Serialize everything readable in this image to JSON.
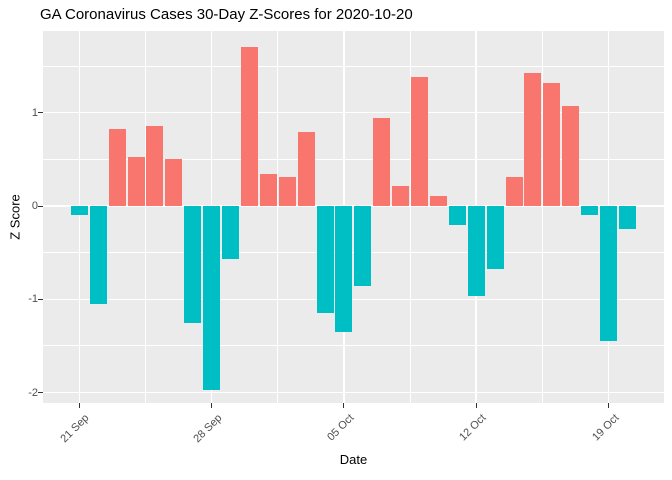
{
  "title": "GA Coronavirus Cases 30-Day Z-Scores for 2020-10-20",
  "chart_data": {
    "type": "bar",
    "title": "GA Coronavirus Cases 30-Day Z-Scores for 2020-10-20",
    "xlabel": "Date",
    "ylabel": "Z Score",
    "legend": "none",
    "grid": "on",
    "ylim": [
      -2.11,
      1.88
    ],
    "y_ticks": [
      {
        "label": "1",
        "value": 1
      },
      {
        "label": "0",
        "value": 0
      },
      {
        "label": "-1",
        "value": -1
      },
      {
        "label": "-2",
        "value": -2
      }
    ],
    "y_minor_values": [
      1.5,
      0.5,
      -0.5,
      -1.5
    ],
    "x_ticks": [
      {
        "label": "21 Sep",
        "day": 0
      },
      {
        "label": "28 Sep",
        "day": 7
      },
      {
        "label": "05 Oct",
        "day": 14
      },
      {
        "label": "12 Oct",
        "day": 21
      },
      {
        "label": "19 Oct",
        "day": 28
      }
    ],
    "x_minor_days": [
      3.5,
      10.5,
      17.5,
      24.5
    ],
    "dates": [
      "2020-09-21",
      "2020-09-22",
      "2020-09-23",
      "2020-09-24",
      "2020-09-25",
      "2020-09-26",
      "2020-09-27",
      "2020-09-28",
      "2020-09-29",
      "2020-09-30",
      "2020-10-01",
      "2020-10-02",
      "2020-10-03",
      "2020-10-04",
      "2020-10-05",
      "2020-10-06",
      "2020-10-07",
      "2020-10-08",
      "2020-10-09",
      "2020-10-10",
      "2020-10-11",
      "2020-10-12",
      "2020-10-13",
      "2020-10-14",
      "2020-10-15",
      "2020-10-16",
      "2020-10-17",
      "2020-10-18",
      "2020-10-19",
      "2020-10-20"
    ],
    "values": [
      -0.1,
      -1.05,
      0.82,
      0.53,
      0.86,
      0.5,
      -1.25,
      -1.97,
      -0.57,
      1.7,
      0.34,
      0.31,
      0.79,
      -1.15,
      -1.35,
      -0.86,
      0.94,
      0.21,
      1.38,
      0.11,
      -0.2,
      -0.96,
      -0.68,
      0.31,
      1.42,
      1.32,
      1.07,
      -0.1,
      -1.45,
      -0.25
    ],
    "colors": {
      "positive": "#F8766D",
      "negative": "#00BFC4",
      "panel_bg": "#EBEBEB",
      "gridline": "#FFFFFF",
      "tick_text": "#4D4D4D",
      "title_text": "#000000"
    }
  }
}
